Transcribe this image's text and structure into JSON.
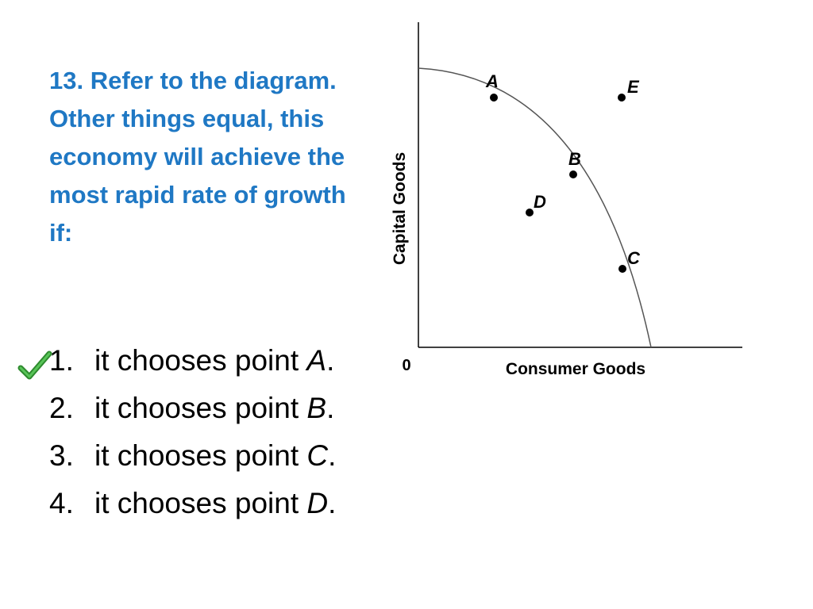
{
  "question": {
    "text": "13. Refer to the diagram. Other things equal, this economy will achieve the most rapid rate of growth if:"
  },
  "choices": [
    {
      "number": "1.",
      "text": "it chooses point ",
      "point": "A",
      "suffix": ".",
      "correct": true
    },
    {
      "number": "2.",
      "text": "it chooses point ",
      "point": "B",
      "suffix": ".",
      "correct": false
    },
    {
      "number": "3.",
      "text": "it chooses point ",
      "point": "C",
      "suffix": ".",
      "correct": false
    },
    {
      "number": "4.",
      "text": "it chooses point ",
      "point": "D",
      "suffix": ".",
      "correct": false
    }
  ],
  "check_icon": {
    "name": "checkmark-icon",
    "color": "#3aa13a"
  },
  "diagram": {
    "y_axis_label": "Capital Goods",
    "x_axis_label": "Consumer Goods",
    "origin_label": "0",
    "points": {
      "A": "A",
      "B": "B",
      "C": "C",
      "D": "D",
      "E": "E"
    }
  },
  "colors": {
    "question": "#1f78c4",
    "body_text": "#000000",
    "axis": "#000000",
    "curve": "#555555"
  }
}
